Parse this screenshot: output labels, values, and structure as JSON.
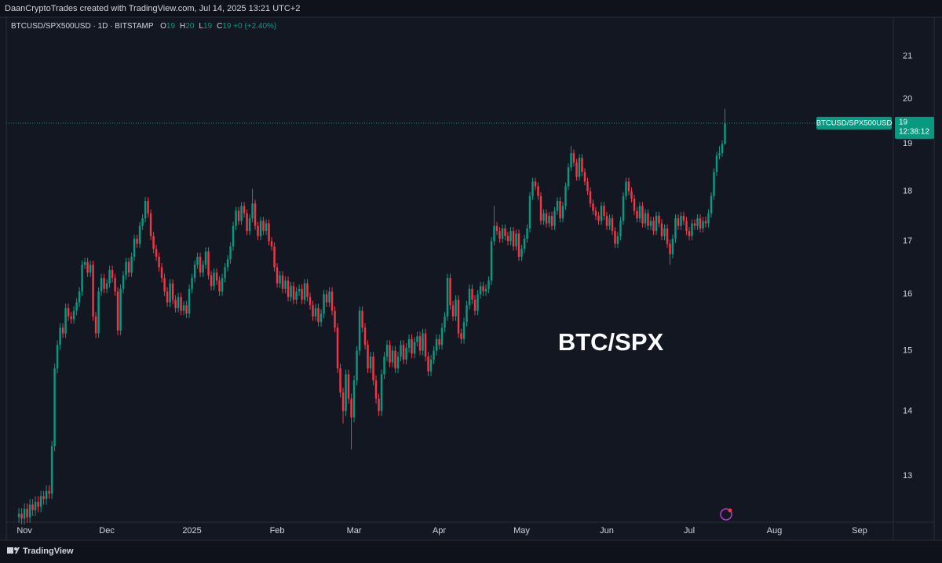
{
  "attribution": "DaanCryptoTrades created with TradingView.com, Jul 14, 2025 13:21 UTC+2",
  "footer_brand": "TradingView",
  "chart_data": {
    "type": "candlestick",
    "annotation": "BTC/SPX",
    "legend": {
      "symbol": "BTCUSD/SPX500USD · 1D · BITSTAMP",
      "fields": [
        {
          "key": "O",
          "value": "19"
        },
        {
          "key": "H",
          "value": "20"
        },
        {
          "key": "L",
          "value": "19"
        },
        {
          "key": "C",
          "value": "19"
        }
      ],
      "change": "+0 (+2.40%)"
    },
    "price_tag": {
      "symbol": "BTCUSD/SPX500USD",
      "price": "19",
      "countdown": "12:38:12"
    },
    "up_color": "#089981",
    "down_color": "#f23645",
    "price_line_color": "#089981",
    "log_scale": true,
    "grid": false,
    "ylim": [
      12.33,
      21.96
    ],
    "yticks": [
      13,
      14,
      15,
      16,
      17,
      18,
      19,
      20,
      21
    ],
    "xlim": [
      -4.6,
      318.3
    ],
    "xticks": [
      {
        "value": 2,
        "label": "Nov"
      },
      {
        "value": 32,
        "label": "Dec"
      },
      {
        "value": 63,
        "label": "2025"
      },
      {
        "value": 94,
        "label": "Feb"
      },
      {
        "value": 122,
        "label": "Mar"
      },
      {
        "value": 153,
        "label": "Apr"
      },
      {
        "value": 183,
        "label": "May"
      },
      {
        "value": 214,
        "label": "Jun"
      },
      {
        "value": 244,
        "label": "Jul"
      },
      {
        "value": 275,
        "label": "Aug"
      },
      {
        "value": 306,
        "label": "Sep"
      }
    ],
    "open": [
      12.4,
      12.45,
      12.38,
      12.52,
      12.4,
      12.58,
      12.5,
      12.62,
      12.55,
      12.7,
      12.66,
      12.78,
      12.74,
      13.45,
      14.7,
      15.1,
      15.4,
      15.3,
      15.75,
      15.6,
      15.55,
      15.7,
      15.85,
      16.05,
      16.55,
      16.6,
      16.4,
      16.55,
      15.6,
      15.3,
      16.05,
      16.3,
      16.1,
      16.2,
      16.45,
      16.3,
      16.05,
      15.35,
      16.1,
      16.35,
      16.6,
      16.4,
      16.7,
      17.05,
      16.95,
      17.3,
      17.45,
      17.8,
      17.55,
      17.1,
      16.85,
      16.7,
      16.5,
      16.3,
      16.05,
      15.85,
      16.2,
      15.9,
      15.75,
      15.95,
      15.7,
      15.8,
      15.65,
      16.1,
      16.3,
      16.55,
      16.7,
      16.4,
      16.55,
      16.8,
      16.35,
      16.15,
      16.4,
      16.25,
      16.05,
      16.3,
      16.5,
      16.65,
      16.9,
      17.3,
      17.6,
      17.4,
      17.7,
      17.55,
      17.2,
      17.45,
      17.75,
      17.3,
      17.1,
      17.4,
      17.2,
      17.35,
      17.0,
      16.9,
      16.5,
      16.2,
      16.35,
      16.1,
      16.25,
      15.95,
      16.15,
      15.9,
      16.05,
      16.1,
      15.9,
      16.2,
      15.95,
      15.8,
      15.6,
      15.75,
      15.5,
      15.65,
      16.0,
      15.85,
      16.05,
      15.7,
      15.4,
      14.7,
      14.3,
      14.0,
      14.6,
      14.2,
      13.9,
      14.5,
      15.0,
      15.7,
      15.4,
      15.1,
      14.7,
      14.9,
      14.5,
      14.2,
      14.0,
      14.6,
      14.9,
      15.1,
      14.8,
      15.0,
      14.7,
      14.9,
      15.1,
      14.85,
      15.05,
      15.2,
      14.95,
      15.15,
      15.25,
      15.0,
      15.3,
      14.9,
      14.65,
      14.85,
      15.0,
      15.2,
      15.1,
      15.4,
      15.6,
      16.3,
      15.8,
      15.6,
      15.9,
      15.3,
      15.2,
      15.5,
      15.8,
      16.1,
      15.9,
      15.7,
      16.0,
      16.15,
      16.05,
      16.1,
      16.25,
      17.0,
      17.3,
      17.2,
      17.05,
      17.25,
      17.1,
      17.0,
      17.2,
      16.9,
      17.15,
      16.7,
      16.85,
      17.05,
      17.25,
      17.9,
      18.2,
      18.1,
      17.9,
      17.4,
      17.55,
      17.35,
      17.5,
      17.3,
      17.6,
      17.8,
      17.45,
      17.7,
      18.1,
      18.5,
      18.8,
      18.6,
      18.3,
      18.7,
      18.4,
      18.2,
      18.0,
      17.75,
      17.6,
      17.5,
      17.4,
      17.7,
      17.5,
      17.3,
      17.45,
      17.2,
      16.95,
      17.1,
      17.4,
      17.9,
      18.2,
      18.0,
      17.85,
      17.6,
      17.45,
      17.7,
      17.35,
      17.55,
      17.3,
      17.4,
      17.2,
      17.5,
      17.35,
      17.1,
      17.25,
      16.95,
      16.75,
      17.05,
      17.45,
      17.3,
      17.5,
      17.4,
      17.2,
      17.1,
      17.35,
      17.3,
      17.45,
      17.25,
      17.4,
      17.35,
      17.55,
      17.9,
      18.4,
      18.75,
      18.8,
      19.0
    ],
    "high": [
      12.53,
      12.53,
      12.6,
      12.6,
      12.66,
      12.66,
      12.7,
      12.7,
      12.78,
      12.78,
      12.86,
      12.86,
      13.53,
      14.78,
      15.18,
      15.48,
      15.48,
      15.83,
      15.83,
      15.68,
      15.78,
      15.93,
      16.13,
      16.63,
      16.68,
      16.68,
      16.63,
      16.63,
      15.68,
      16.13,
      16.38,
      16.38,
      16.28,
      16.53,
      16.53,
      16.38,
      16.13,
      16.18,
      16.43,
      16.68,
      16.68,
      16.78,
      17.13,
      17.13,
      17.38,
      17.53,
      17.88,
      17.88,
      17.63,
      17.18,
      16.93,
      16.78,
      16.58,
      16.38,
      16.13,
      16.28,
      16.28,
      15.98,
      16.03,
      16.03,
      15.88,
      15.88,
      16.18,
      16.38,
      16.63,
      16.78,
      16.78,
      16.63,
      16.88,
      16.88,
      16.43,
      16.48,
      16.48,
      16.33,
      16.38,
      16.58,
      16.73,
      16.98,
      17.38,
      17.68,
      17.68,
      17.78,
      17.78,
      17.63,
      17.53,
      18.05,
      17.83,
      17.38,
      17.48,
      17.48,
      17.43,
      17.43,
      17.08,
      16.98,
      16.58,
      16.43,
      16.43,
      16.33,
      16.33,
      16.23,
      16.23,
      16.13,
      16.18,
      16.18,
      16.28,
      16.28,
      16.03,
      15.88,
      15.83,
      15.83,
      15.73,
      16.08,
      16.08,
      16.13,
      16.13,
      15.78,
      15.48,
      14.78,
      14.38,
      14.68,
      14.68,
      14.28,
      14.58,
      15.08,
      15.78,
      15.78,
      15.48,
      15.18,
      14.98,
      14.98,
      14.58,
      14.28,
      14.68,
      14.98,
      15.18,
      15.18,
      15.08,
      15.08,
      14.98,
      15.18,
      15.18,
      15.13,
      15.28,
      15.28,
      15.23,
      15.33,
      15.33,
      15.38,
      15.38,
      14.98,
      14.93,
      15.08,
      15.28,
      15.28,
      15.48,
      15.68,
      16.38,
      16.38,
      15.88,
      15.98,
      15.98,
      15.38,
      15.58,
      15.88,
      16.18,
      16.18,
      15.98,
      16.08,
      16.23,
      16.23,
      16.18,
      16.33,
      17.08,
      17.7,
      17.38,
      17.28,
      17.33,
      17.33,
      17.18,
      17.28,
      17.28,
      17.23,
      17.23,
      16.93,
      17.13,
      17.33,
      17.98,
      18.28,
      18.28,
      18.18,
      17.98,
      17.63,
      17.63,
      17.58,
      17.58,
      17.68,
      17.88,
      17.88,
      17.78,
      18.18,
      18.58,
      18.95,
      18.88,
      18.68,
      18.78,
      18.78,
      18.48,
      18.28,
      18.08,
      17.83,
      17.68,
      17.58,
      17.78,
      17.78,
      17.58,
      17.53,
      17.53,
      17.28,
      17.18,
      17.48,
      17.98,
      18.28,
      18.28,
      18.08,
      17.93,
      17.68,
      17.78,
      17.78,
      17.63,
      17.63,
      17.48,
      17.48,
      17.58,
      17.58,
      17.43,
      17.33,
      17.33,
      17.03,
      17.13,
      17.53,
      17.53,
      17.58,
      17.58,
      17.48,
      17.28,
      17.43,
      17.43,
      17.53,
      17.53,
      17.48,
      17.48,
      17.63,
      17.98,
      18.48,
      18.83,
      18.95,
      19.08,
      19.78
    ],
    "low": [
      12.32,
      12.3,
      12.3,
      12.32,
      12.32,
      12.42,
      12.42,
      12.47,
      12.47,
      12.58,
      12.58,
      12.66,
      12.66,
      13.37,
      14.62,
      15.02,
      15.22,
      15.22,
      15.52,
      15.47,
      15.47,
      15.62,
      15.77,
      15.97,
      16.47,
      16.32,
      16.32,
      15.52,
      15.22,
      15.22,
      15.97,
      16.02,
      16.02,
      16.12,
      16.22,
      15.97,
      15.27,
      15.27,
      16.02,
      16.27,
      16.32,
      16.32,
      16.62,
      16.87,
      16.87,
      17.22,
      17.37,
      17.47,
      17.02,
      16.77,
      16.62,
      16.42,
      16.22,
      15.97,
      15.77,
      15.77,
      15.82,
      15.67,
      15.67,
      15.62,
      15.62,
      15.57,
      15.57,
      16.02,
      16.22,
      16.47,
      16.32,
      16.32,
      16.47,
      16.27,
      16.07,
      16.07,
      16.17,
      15.97,
      15.97,
      16.22,
      16.42,
      16.57,
      16.82,
      17.22,
      17.32,
      17.32,
      17.47,
      17.12,
      17.12,
      17.37,
      17.22,
      17.02,
      17.02,
      17.12,
      17.12,
      16.92,
      16.82,
      16.42,
      16.12,
      16.12,
      16.02,
      16.02,
      15.87,
      15.87,
      15.82,
      15.82,
      15.97,
      15.82,
      15.82,
      15.87,
      15.72,
      15.52,
      15.52,
      15.42,
      15.42,
      15.57,
      15.77,
      15.77,
      15.62,
      15.32,
      14.62,
      14.22,
      13.8,
      13.92,
      14.12,
      13.4,
      13.82,
      14.42,
      14.92,
      15.32,
      15.02,
      14.62,
      14.62,
      14.42,
      14.12,
      13.92,
      13.92,
      14.52,
      14.82,
      14.72,
      14.72,
      14.62,
      14.62,
      14.82,
      14.77,
      14.77,
      14.97,
      14.87,
      14.87,
      15.07,
      14.92,
      14.92,
      14.82,
      14.57,
      14.57,
      14.77,
      14.92,
      15.02,
      15.02,
      15.32,
      15.52,
      15.72,
      15.52,
      15.52,
      15.22,
      15.12,
      15.12,
      15.42,
      15.72,
      15.82,
      15.62,
      15.62,
      15.92,
      15.97,
      15.97,
      16.02,
      16.17,
      16.92,
      17.12,
      16.97,
      16.97,
      17.02,
      16.92,
      16.92,
      16.82,
      16.82,
      16.62,
      16.62,
      16.77,
      16.97,
      17.17,
      17.82,
      18.02,
      17.82,
      17.32,
      17.32,
      17.27,
      17.27,
      17.22,
      17.22,
      17.52,
      17.37,
      17.37,
      17.62,
      18.02,
      18.42,
      18.52,
      18.22,
      18.22,
      18.32,
      18.12,
      17.92,
      17.67,
      17.52,
      17.42,
      17.32,
      17.32,
      17.42,
      17.22,
      17.22,
      17.12,
      16.87,
      16.87,
      17.02,
      17.32,
      17.82,
      17.92,
      17.77,
      17.52,
      17.37,
      17.37,
      17.27,
      17.27,
      17.22,
      17.22,
      17.12,
      17.12,
      17.27,
      17.02,
      17.02,
      16.87,
      16.55,
      16.67,
      16.97,
      17.22,
      17.22,
      17.32,
      17.12,
      17.02,
      17.02,
      17.22,
      17.22,
      17.17,
      17.17,
      17.27,
      17.27,
      17.47,
      17.82,
      18.32,
      18.67,
      18.72,
      18.98
    ],
    "close": [
      12.45,
      12.38,
      12.52,
      12.4,
      12.58,
      12.5,
      12.62,
      12.55,
      12.7,
      12.66,
      12.78,
      12.74,
      13.45,
      14.7,
      15.1,
      15.4,
      15.3,
      15.75,
      15.6,
      15.55,
      15.7,
      15.85,
      16.05,
      16.55,
      16.6,
      16.4,
      16.55,
      15.6,
      15.3,
      16.05,
      16.3,
      16.1,
      16.2,
      16.45,
      16.3,
      16.05,
      15.35,
      16.1,
      16.35,
      16.6,
      16.4,
      16.7,
      17.05,
      16.95,
      17.3,
      17.45,
      17.8,
      17.55,
      17.1,
      16.85,
      16.7,
      16.5,
      16.3,
      16.05,
      15.85,
      16.2,
      15.9,
      15.75,
      15.95,
      15.7,
      15.8,
      15.65,
      16.1,
      16.3,
      16.55,
      16.7,
      16.4,
      16.55,
      16.8,
      16.35,
      16.15,
      16.4,
      16.25,
      16.05,
      16.3,
      16.5,
      16.65,
      16.9,
      17.3,
      17.6,
      17.4,
      17.7,
      17.55,
      17.2,
      17.45,
      17.75,
      17.3,
      17.1,
      17.4,
      17.2,
      17.35,
      17.0,
      16.9,
      16.5,
      16.2,
      16.35,
      16.1,
      16.25,
      15.95,
      16.15,
      15.9,
      16.05,
      16.1,
      15.9,
      16.2,
      15.95,
      15.8,
      15.6,
      15.75,
      15.5,
      15.65,
      16.0,
      15.85,
      16.05,
      15.7,
      15.4,
      14.7,
      14.3,
      14.0,
      14.6,
      14.2,
      13.9,
      14.5,
      15.0,
      15.7,
      15.4,
      15.1,
      14.7,
      14.9,
      14.5,
      14.2,
      14.0,
      14.6,
      14.9,
      15.1,
      14.8,
      15.0,
      14.7,
      14.9,
      15.1,
      14.85,
      15.05,
      15.2,
      14.95,
      15.15,
      15.25,
      15.0,
      15.3,
      14.9,
      14.65,
      14.85,
      15.0,
      15.2,
      15.1,
      15.4,
      15.6,
      16.3,
      15.8,
      15.6,
      15.9,
      15.3,
      15.2,
      15.5,
      15.8,
      16.1,
      15.9,
      15.7,
      16.0,
      16.15,
      16.05,
      16.1,
      16.25,
      17.0,
      17.3,
      17.2,
      17.05,
      17.25,
      17.1,
      17.0,
      17.2,
      16.9,
      17.15,
      16.7,
      16.85,
      17.05,
      17.25,
      17.9,
      18.2,
      18.1,
      17.9,
      17.4,
      17.55,
      17.35,
      17.5,
      17.3,
      17.6,
      17.8,
      17.45,
      17.7,
      18.1,
      18.5,
      18.8,
      18.6,
      18.3,
      18.7,
      18.4,
      18.2,
      18.0,
      17.75,
      17.6,
      17.5,
      17.4,
      17.7,
      17.5,
      17.3,
      17.45,
      17.2,
      16.95,
      17.1,
      17.4,
      17.9,
      18.2,
      18.0,
      17.85,
      17.6,
      17.45,
      17.7,
      17.35,
      17.55,
      17.3,
      17.4,
      17.2,
      17.5,
      17.35,
      17.1,
      17.25,
      16.95,
      16.75,
      17.05,
      17.45,
      17.3,
      17.5,
      17.4,
      17.2,
      17.1,
      17.35,
      17.3,
      17.45,
      17.25,
      17.4,
      17.35,
      17.55,
      17.9,
      18.4,
      18.75,
      18.8,
      19.0,
      19.455
    ]
  }
}
